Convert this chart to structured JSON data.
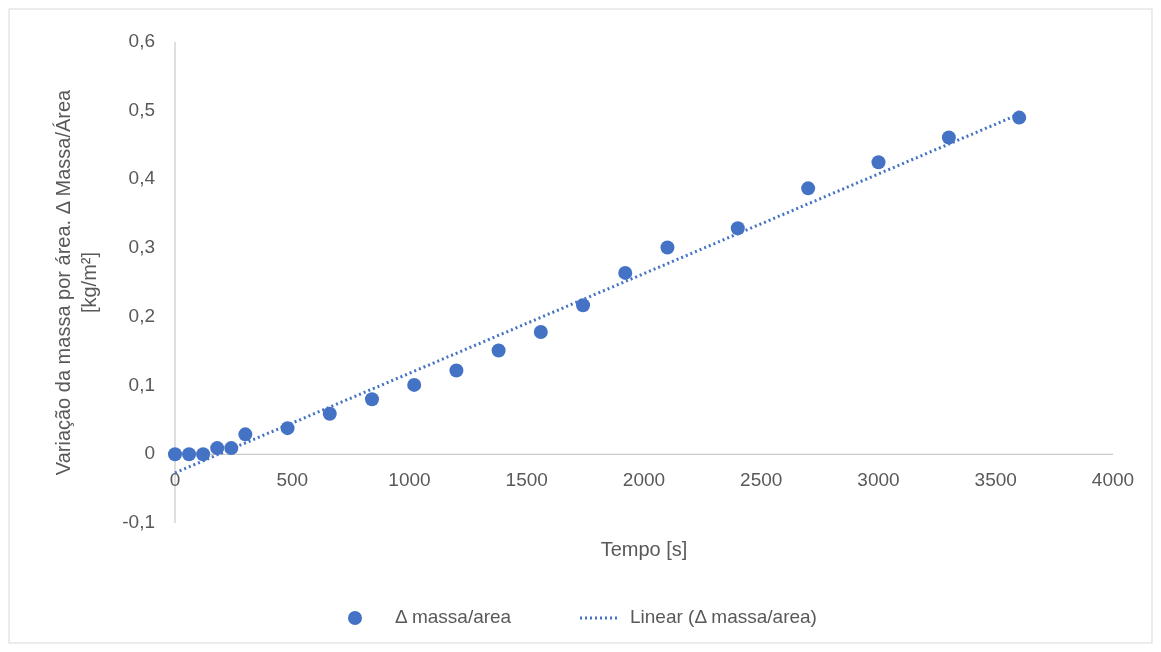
{
  "chart_data": {
    "type": "scatter",
    "xlabel": "Tempo [s]",
    "ylabel": "Variação da massa por área. Δ Massa/Área [kg/m²]",
    "xlim": [
      0,
      4000
    ],
    "xticks": [
      0,
      500,
      1000,
      1500,
      2000,
      2500,
      3000,
      3500,
      4000
    ],
    "ylim": [
      -0.1,
      0.6
    ],
    "yticks": [
      {
        "value": -0.1,
        "label": "-0,1"
      },
      {
        "value": 0,
        "label": "0"
      },
      {
        "value": 0.1,
        "label": "0,1"
      },
      {
        "value": 0.2,
        "label": "0,2"
      },
      {
        "value": 0.3,
        "label": "0,3"
      },
      {
        "value": 0.4,
        "label": "0,4"
      },
      {
        "value": 0.5,
        "label": "0,5"
      },
      {
        "value": 0.6,
        "label": "0,6"
      }
    ],
    "grid": false,
    "legend": "bottom",
    "series": [
      {
        "name": "Δ massa/area",
        "marker": "circle",
        "color": "#4472c4",
        "x": [
          0,
          60,
          120,
          180,
          240,
          300,
          480,
          660,
          840,
          1020,
          1200,
          1380,
          1560,
          1740,
          1920,
          2100,
          2400,
          2700,
          3000,
          3300,
          3600
        ],
        "values": [
          0,
          0,
          0,
          0.009,
          0.009,
          0.029,
          0.038,
          0.059,
          0.08,
          0.101,
          0.122,
          0.151,
          0.178,
          0.217,
          0.264,
          0.301,
          0.329,
          0.387,
          0.425,
          0.461,
          0.49
        ]
      },
      {
        "name": "Linear (Δ massa/area)",
        "type": "line",
        "marker": "none",
        "line_style": "dotted",
        "color": "#4472c4",
        "x": [
          0,
          3600
        ],
        "values": [
          -0.027,
          0.495
        ]
      }
    ]
  }
}
